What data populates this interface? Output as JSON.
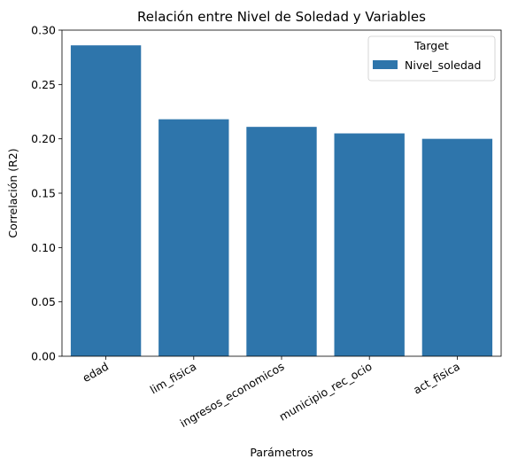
{
  "chart_data": {
    "type": "bar",
    "title": "Relación entre Nivel de Soledad y Variables",
    "xlabel": "Parámetros",
    "ylabel": "Correlación (R2)",
    "categories": [
      "edad",
      "lim_fisica",
      "ingresos_economicos",
      "municipio_rec_ocio",
      "act_fisica"
    ],
    "series": [
      {
        "name": "Nivel_soledad",
        "values": [
          0.286,
          0.218,
          0.211,
          0.205,
          0.2
        ],
        "color": "#2e75ab"
      }
    ],
    "ylim": [
      0,
      0.3
    ],
    "yticks": [
      "0.00",
      "0.05",
      "0.10",
      "0.15",
      "0.20",
      "0.25",
      "0.30"
    ],
    "grid": false,
    "legend": {
      "title": "Target",
      "placement": "top-right"
    }
  }
}
